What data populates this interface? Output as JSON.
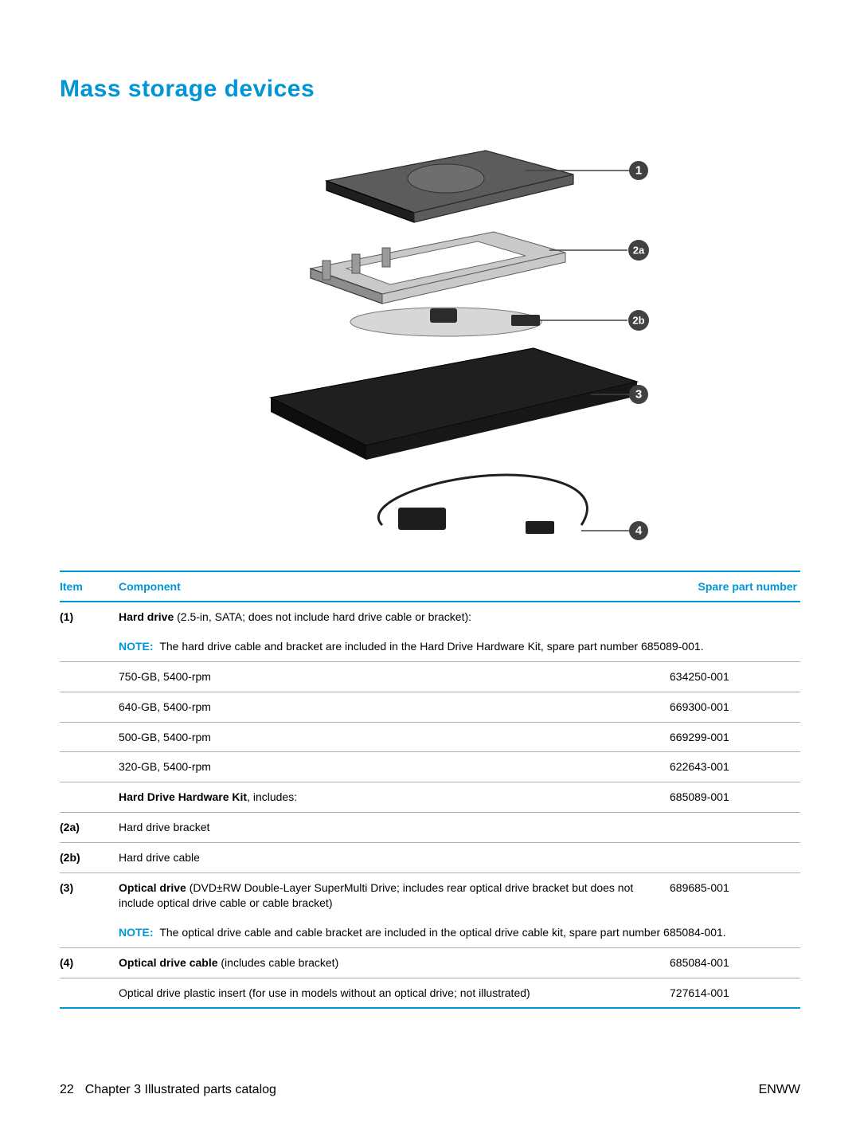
{
  "title": "Mass storage devices",
  "diagram": {
    "callouts": [
      "1",
      "2a",
      "2b",
      "3"
    ],
    "badge_color": "#414141",
    "leader_color": "#414141"
  },
  "table": {
    "headers": {
      "item": "Item",
      "component": "Component",
      "spn": "Spare part number"
    },
    "header_color": "#0096d6",
    "rule_color": "#0096d6",
    "row_border_color": "#b0b0b0",
    "note_label": "NOTE:",
    "rows": [
      {
        "item": "(1)",
        "component_bold": "Hard drive",
        "component_rest": " (2.5-in, SATA; does not include hard drive cable or bracket):",
        "spn": "",
        "note": "The hard drive cable and bracket are included in the Hard Drive Hardware Kit, spare part number 685089-001.",
        "no_item_border": true
      },
      {
        "item": "",
        "component": "750-GB, 5400-rpm",
        "spn": "634250-001"
      },
      {
        "item": "",
        "component": "640-GB, 5400-rpm",
        "spn": "669300-001"
      },
      {
        "item": "",
        "component": "500-GB, 5400-rpm",
        "spn": "669299-001"
      },
      {
        "item": "",
        "component": "320-GB, 5400-rpm",
        "spn": "622643-001"
      },
      {
        "item": "",
        "component_bold": "Hard Drive Hardware Kit",
        "component_rest": ", includes:",
        "spn": "685089-001"
      },
      {
        "item": "(2a)",
        "component": "Hard drive bracket",
        "spn": ""
      },
      {
        "item": "(2b)",
        "component": "Hard drive cable",
        "spn": ""
      },
      {
        "item": "(3)",
        "component_bold": "Optical drive",
        "component_rest": " (DVD±RW Double-Layer SuperMulti Drive; includes rear optical drive bracket but does not include optical drive cable or cable bracket)",
        "spn": "689685-001",
        "note": "The optical drive cable and cable bracket are included in the optical drive cable kit, spare part number 685084-001.",
        "no_item_border": true
      },
      {
        "item": "(4)",
        "component_bold": "Optical drive cable",
        "component_rest": " (includes cable bracket)",
        "spn": "685084-001"
      },
      {
        "item": "",
        "component": "Optical drive plastic insert (for use in models without an optical drive; not illustrated)",
        "spn": "727614-001",
        "last": true
      }
    ]
  },
  "footer": {
    "page_number": "22",
    "chapter": "Chapter 3   Illustrated parts catalog",
    "right": "ENWW"
  }
}
